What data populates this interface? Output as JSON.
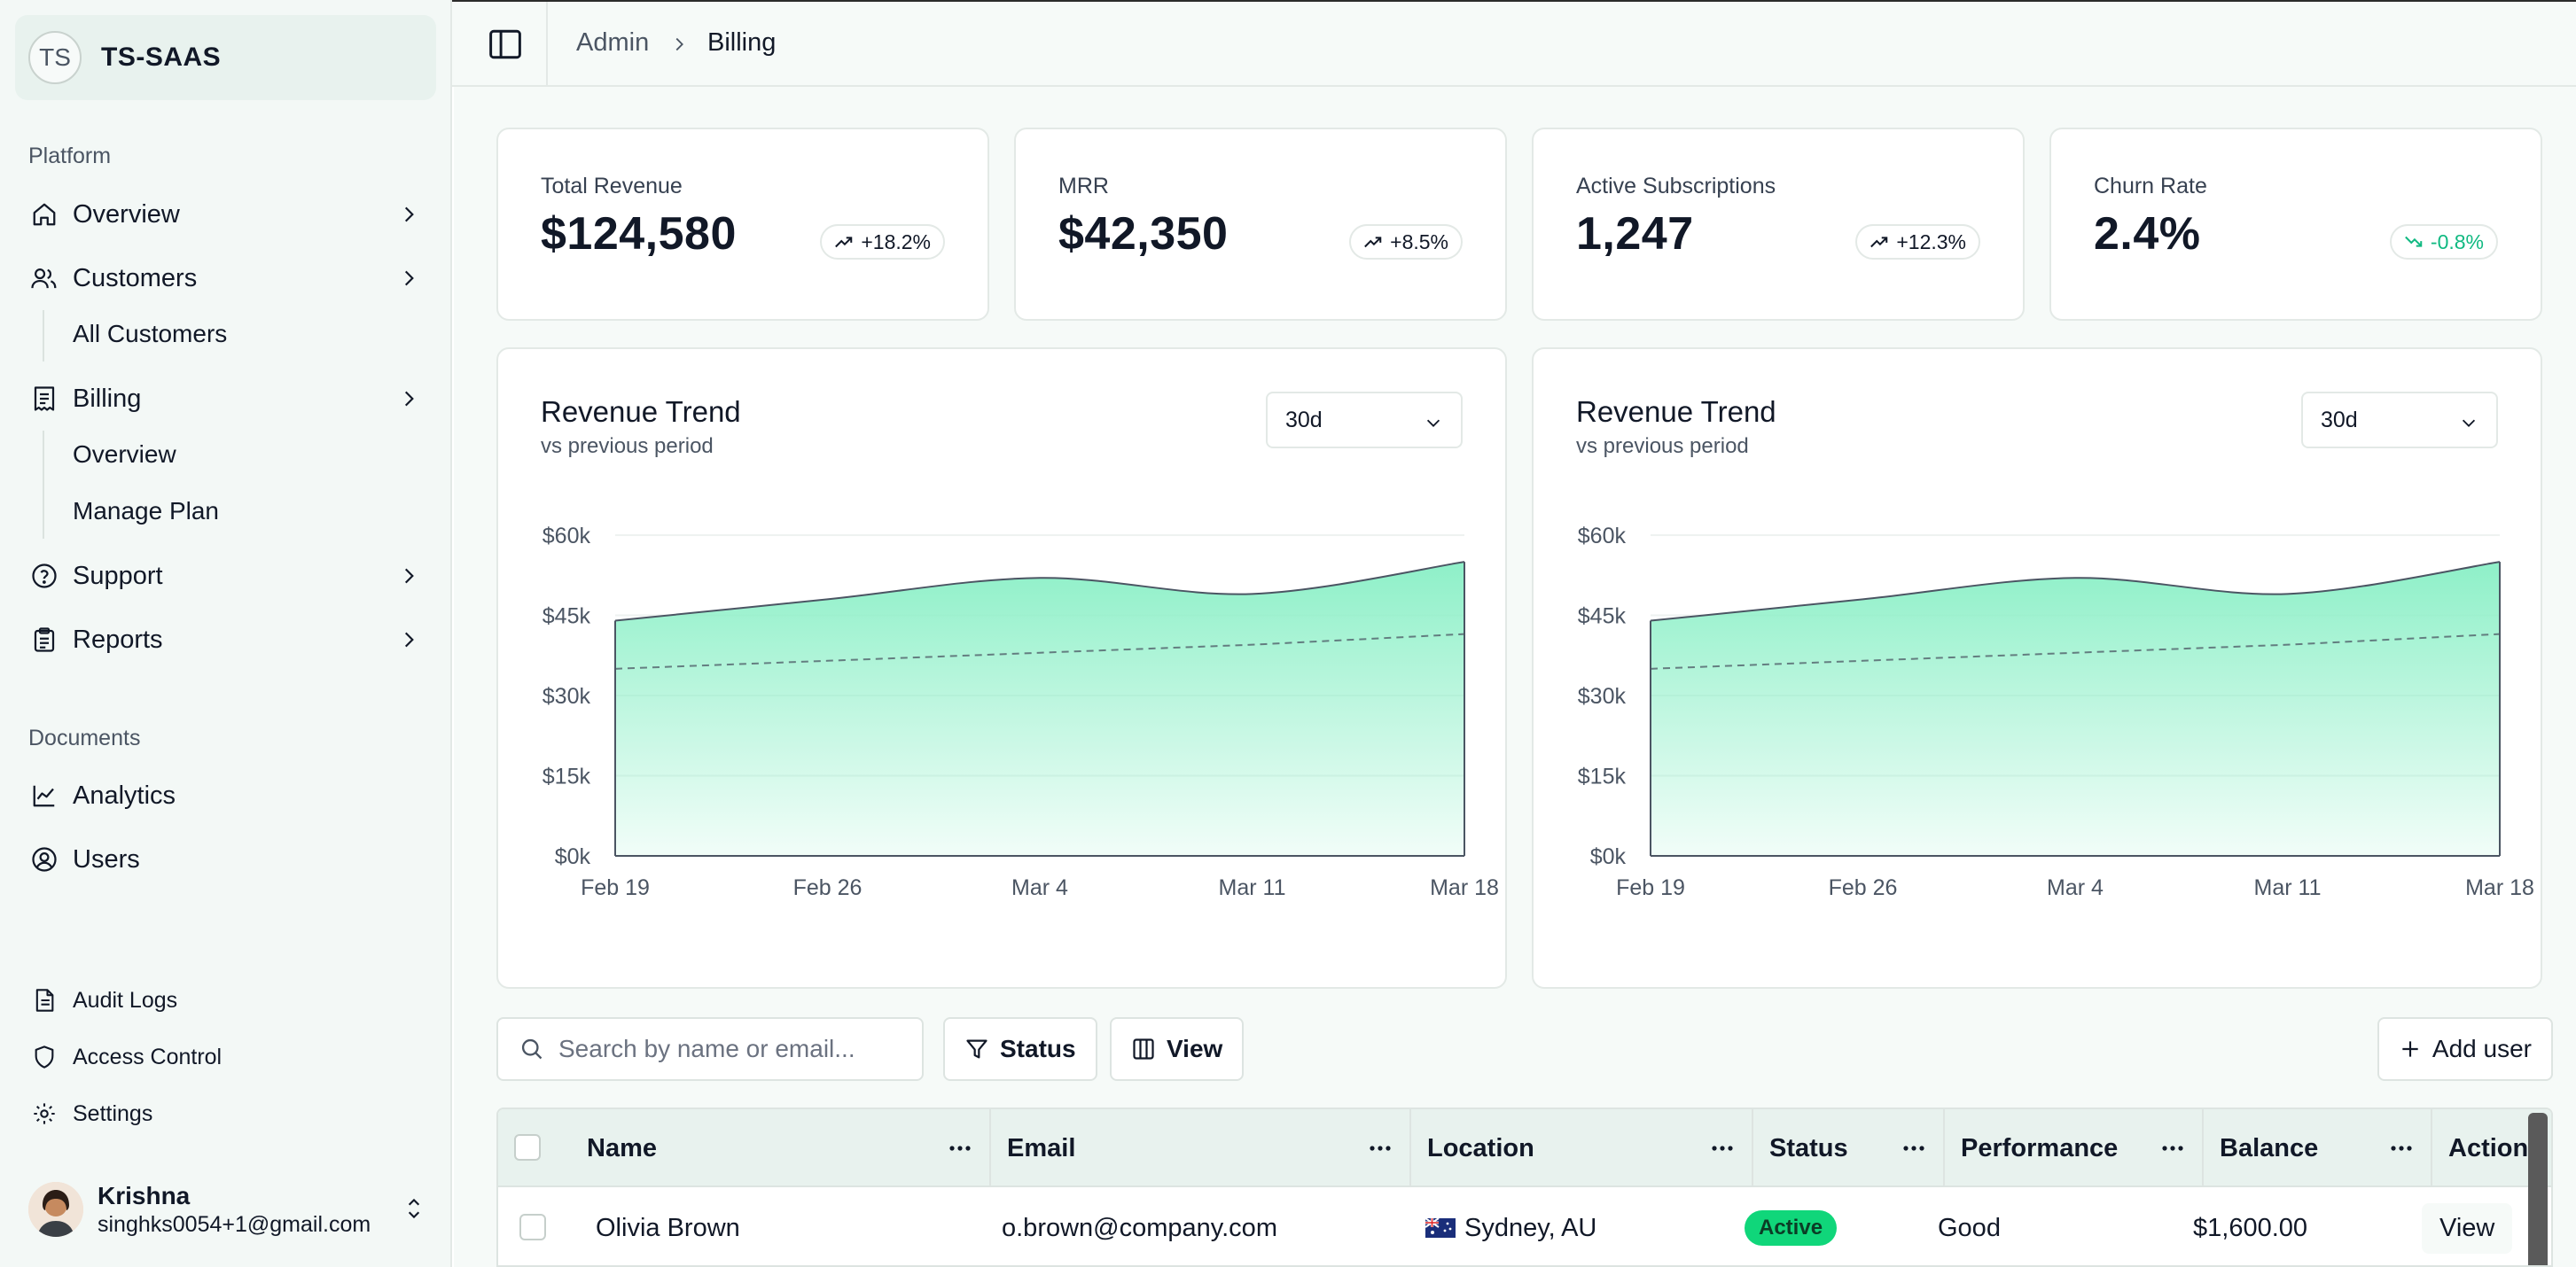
{
  "brand": {
    "initials": "TS",
    "name": "TS-SAAS"
  },
  "sidebar": {
    "platform_label": "Platform",
    "overview": "Overview",
    "customers": "Customers",
    "customers_sub": [
      "All Customers"
    ],
    "billing": "Billing",
    "billing_sub": [
      "Overview",
      "Manage Plan"
    ],
    "support": "Support",
    "reports": "Reports",
    "documents_label": "Documents",
    "analytics": "Analytics",
    "users": "Users",
    "audit_logs": "Audit Logs",
    "access_control": "Access Control",
    "settings": "Settings"
  },
  "user": {
    "name": "Krishna",
    "email": "singhks0054+1@gmail.com"
  },
  "breadcrumb": {
    "parent": "Admin",
    "current": "Billing"
  },
  "stats": [
    {
      "label": "Total Revenue",
      "value": "$124,580",
      "change": "+18.2%",
      "trend": "up"
    },
    {
      "label": "MRR",
      "value": "$42,350",
      "change": "+8.5%",
      "trend": "up"
    },
    {
      "label": "Active Subscriptions",
      "value": "1,247",
      "change": "+12.3%",
      "trend": "up"
    },
    {
      "label": "Churn Rate",
      "value": "2.4%",
      "change": "-0.8%",
      "trend": "down"
    }
  ],
  "charts": [
    {
      "title": "Revenue Trend",
      "subtitle": "vs previous period",
      "range": "30d"
    },
    {
      "title": "Revenue Trend",
      "subtitle": "vs previous period",
      "range": "30d"
    }
  ],
  "chart_data": {
    "type": "area",
    "y_tick_labels": [
      "$60k",
      "$45k",
      "$30k",
      "$15k",
      "$0k"
    ],
    "y_ticks": [
      60000,
      45000,
      30000,
      15000,
      0
    ],
    "ylim": [
      0,
      60000
    ],
    "x_tick_labels": [
      "Feb 19",
      "Feb 26",
      "Mar 4",
      "Mar 11",
      "Mar 18"
    ],
    "x": [
      "Feb 19",
      "Feb 26",
      "Mar 4",
      "Mar 11",
      "Mar 18"
    ],
    "series": [
      {
        "values": [
          44000,
          48000,
          52000,
          49000,
          55000
        ],
        "color": "#8ef0c8"
      },
      {
        "values": [
          35000,
          36500,
          38000,
          39500,
          41500
        ],
        "style": "dashed"
      }
    ]
  },
  "toolbar": {
    "search_placeholder": "Search by name or email...",
    "status_label": "Status",
    "view_label": "View",
    "add_user_label": "Add user"
  },
  "table": {
    "columns": [
      "Name",
      "Email",
      "Location",
      "Status",
      "Performance",
      "Balance",
      "Actions"
    ],
    "rows": [
      {
        "name": "Olivia Brown",
        "email": "o.brown@company.com",
        "location": "Sydney, AU",
        "status": "Active",
        "performance": "Good",
        "balance": "$1,600.00",
        "action": "View"
      }
    ]
  },
  "colors": {
    "accent": "#10d67a",
    "chart_fill": "#8ef0c8",
    "sidebar_bg": "#f3f8f6"
  }
}
